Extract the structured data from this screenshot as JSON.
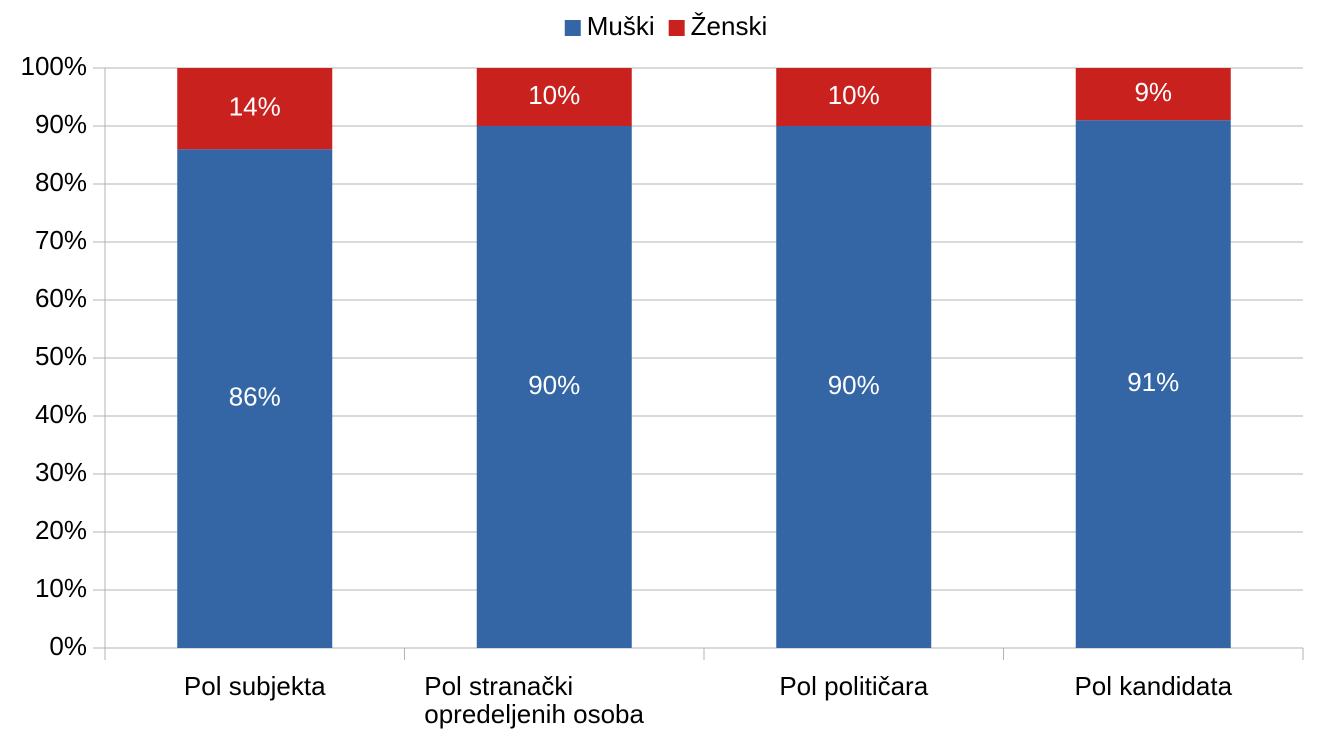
{
  "chart_data": {
    "type": "stacked_bar",
    "categories": [
      "Pol subjekta",
      "Pol stranački opredeljenih osoba",
      "Pol političara",
      "Pol kandidata"
    ],
    "series": [
      {
        "name": "Muški",
        "color": "#3465a4",
        "values": [
          86,
          90,
          90,
          91
        ],
        "value_labels": [
          "86%",
          "90%",
          "90%",
          "91%"
        ]
      },
      {
        "name": "Ženski",
        "color": "#c9211e",
        "values": [
          14,
          10,
          10,
          9
        ],
        "value_labels": [
          "14%",
          "10%",
          "10%",
          "9%"
        ]
      }
    ],
    "ylim": [
      0,
      100
    ],
    "yticks": [
      {
        "value": 0,
        "label": "0%"
      },
      {
        "value": 10,
        "label": "10%"
      },
      {
        "value": 20,
        "label": "20%"
      },
      {
        "value": 30,
        "label": "30%"
      },
      {
        "value": 40,
        "label": "40%"
      },
      {
        "value": 50,
        "label": "50%"
      },
      {
        "value": 60,
        "label": "60%"
      },
      {
        "value": 70,
        "label": "70%"
      },
      {
        "value": 80,
        "label": "80%"
      },
      {
        "value": 90,
        "label": "90%"
      },
      {
        "value": 100,
        "label": "100%"
      }
    ],
    "grid": true,
    "legend": "top"
  }
}
